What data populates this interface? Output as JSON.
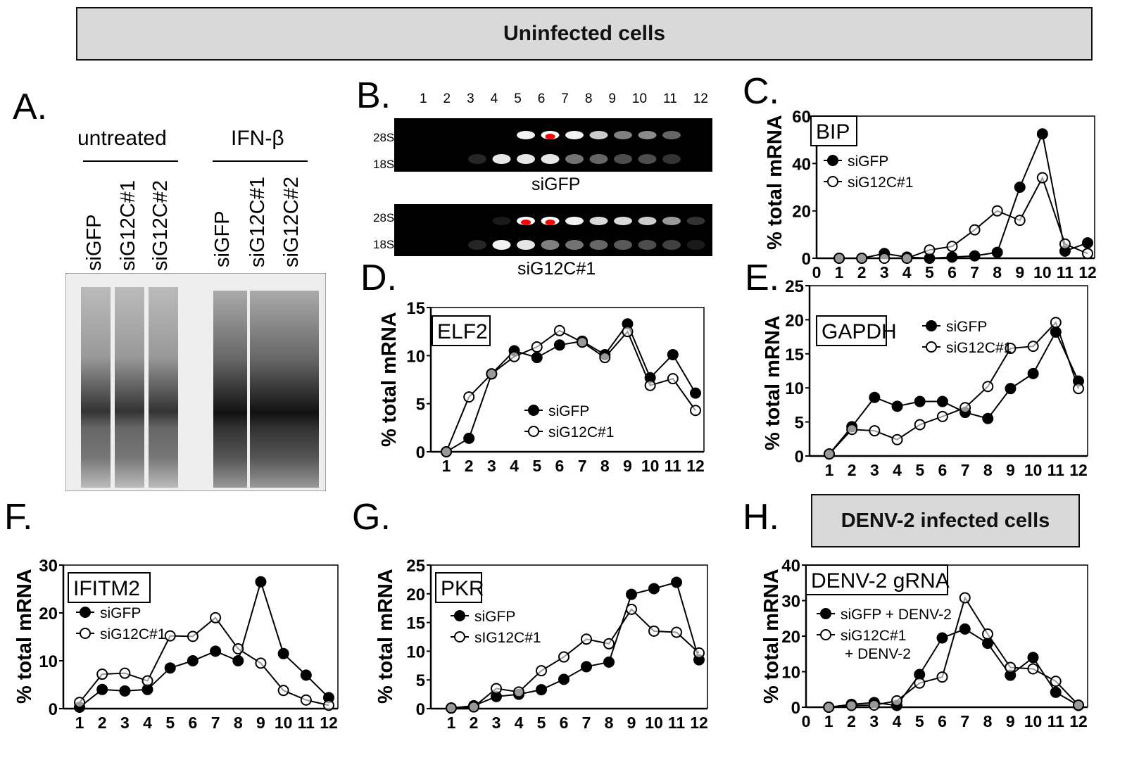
{
  "header": {
    "title": "Uninfected cells"
  },
  "panel_labels": [
    "A.",
    "B.",
    "C.",
    "D.",
    "E.",
    "F.",
    "G.",
    "H."
  ],
  "panel_a": {
    "groups": [
      "untreated",
      "IFN-β"
    ],
    "lanes": [
      "siGFP",
      "siG12C#1",
      "siG12C#2",
      "siGFP",
      "siG12C#1",
      "siG12C#2"
    ]
  },
  "panel_b": {
    "fractions": [
      "1",
      "2",
      "3",
      "4",
      "5",
      "6",
      "7",
      "8",
      "9",
      "10",
      "11",
      "12"
    ],
    "markers": [
      "28S",
      "18S"
    ],
    "gels": [
      "siGFP",
      "siG12C#1"
    ]
  },
  "infected_banner": "DENV-2 infected cells",
  "colors": {
    "banner_bg": "#d9d9d9",
    "gel_band_saturated": "#ff0000"
  },
  "chart_data": [
    {
      "type": "line",
      "title": "BIP",
      "ylabel": "% total mRNA",
      "ylim": [
        0,
        60
      ],
      "yticks": [
        0,
        20,
        40,
        60
      ],
      "xlim": [
        0,
        12
      ],
      "xticks": [
        "0",
        "1",
        "2",
        "3",
        "4",
        "5",
        "6",
        "7",
        "8",
        "9",
        "10",
        "11",
        "12"
      ],
      "x": [
        1,
        2,
        3,
        4,
        5,
        6,
        7,
        8,
        9,
        10,
        11,
        12
      ],
      "series": [
        {
          "name": "siGFP",
          "marker": "filled",
          "values": [
            0,
            0,
            2,
            0.5,
            0,
            0.5,
            1,
            2.5,
            30,
            52.5,
            3,
            6.5
          ]
        },
        {
          "name": "siG12C#1",
          "marker": "open",
          "values": [
            0,
            0,
            0,
            0,
            3.5,
            5,
            12,
            20,
            16,
            34,
            6,
            2
          ]
        }
      ]
    },
    {
      "type": "line",
      "title": "ELF2",
      "ylabel": "% total mRNA",
      "ylim": [
        0,
        15
      ],
      "yticks": [
        0,
        5,
        10,
        15
      ],
      "xlim": [
        1,
        12
      ],
      "xticks": [
        "1",
        "2",
        "3",
        "4",
        "5",
        "6",
        "7",
        "8",
        "9",
        "10",
        "11",
        "12"
      ],
      "x": [
        1,
        2,
        3,
        4,
        5,
        6,
        7,
        8,
        9,
        10,
        11,
        12
      ],
      "series": [
        {
          "name": "siGFP",
          "marker": "filled",
          "values": [
            0,
            1.4,
            8.1,
            10.5,
            9.8,
            11.1,
            11.5,
            10.1,
            13.3,
            7.7,
            10.1,
            6.1
          ]
        },
        {
          "name": "siG12C#1",
          "marker": "open",
          "values": [
            0,
            5.7,
            8.1,
            9.9,
            10.9,
            12.6,
            11.4,
            9.8,
            12.5,
            6.9,
            7.6,
            4.3
          ]
        }
      ]
    },
    {
      "type": "line",
      "title": "GAPDH",
      "ylabel": "% total mRNA",
      "ylim": [
        0,
        25
      ],
      "yticks": [
        0,
        5,
        10,
        15,
        20,
        25
      ],
      "xlim": [
        1,
        12
      ],
      "xticks": [
        "1",
        "2",
        "3",
        "4",
        "5",
        "6",
        "7",
        "8",
        "9",
        "10",
        "11",
        "12"
      ],
      "x": [
        1,
        2,
        3,
        4,
        5,
        6,
        7,
        8,
        9,
        10,
        11,
        12
      ],
      "series": [
        {
          "name": "siGFP",
          "marker": "filled",
          "values": [
            0.3,
            4.3,
            8.6,
            7.3,
            8,
            8,
            6.4,
            5.5,
            9.9,
            12.1,
            18.2,
            11
          ]
        },
        {
          "name": "siG12C#1",
          "marker": "open",
          "values": [
            0.3,
            3.9,
            3.7,
            2.4,
            4.6,
            5.8,
            7.1,
            10.2,
            15.8,
            16.1,
            19.6,
            9.9
          ]
        }
      ]
    },
    {
      "type": "line",
      "title": "IFITM2",
      "ylabel": "% total mRNA",
      "ylim": [
        0,
        30
      ],
      "yticks": [
        0,
        10,
        20,
        30
      ],
      "xlim": [
        1,
        12
      ],
      "xticks": [
        "1",
        "2",
        "3",
        "4",
        "5",
        "6",
        "7",
        "8",
        "9",
        "10",
        "11",
        "12"
      ],
      "x": [
        1,
        2,
        3,
        4,
        5,
        6,
        7,
        8,
        9,
        10,
        11,
        12
      ],
      "series": [
        {
          "name": "siGFP",
          "marker": "filled",
          "values": [
            0.3,
            4,
            3.7,
            4,
            8.5,
            10,
            12,
            10,
            26.5,
            11.5,
            7,
            2.3
          ]
        },
        {
          "name": "siG12C#1",
          "marker": "open",
          "values": [
            1.3,
            7.2,
            7.4,
            5.8,
            15.2,
            15.1,
            19,
            12.5,
            9.5,
            3.8,
            1.8,
            0.7
          ]
        }
      ]
    },
    {
      "type": "line",
      "title": "PKR",
      "ylabel": "% total mRNA",
      "ylim": [
        0,
        25
      ],
      "yticks": [
        0,
        5,
        10,
        15,
        20,
        25
      ],
      "xlim": [
        1,
        12
      ],
      "xticks": [
        "1",
        "2",
        "3",
        "4",
        "5",
        "6",
        "7",
        "8",
        "9",
        "10",
        "11",
        "12"
      ],
      "x": [
        1,
        2,
        3,
        4,
        5,
        6,
        7,
        8,
        9,
        10,
        11,
        12
      ],
      "series": [
        {
          "name": "siGFP",
          "marker": "filled",
          "values": [
            0.1,
            0.5,
            2.1,
            2.5,
            3.3,
            5.1,
            7.3,
            8.1,
            19.9,
            20.9,
            22,
            8.5
          ]
        },
        {
          "name": "sIG12C#1",
          "marker": "open",
          "values": [
            0.1,
            0.3,
            3.5,
            2.9,
            6.6,
            9,
            12.1,
            11.3,
            17.3,
            13.5,
            13.3,
            9.7
          ]
        }
      ]
    },
    {
      "type": "line",
      "title": "DENV-2 gRNA",
      "ylabel": "% total mRNA",
      "ylim": [
        0,
        40
      ],
      "yticks": [
        0,
        10,
        20,
        30,
        40
      ],
      "xlim": [
        0,
        12
      ],
      "xticks": [
        "0",
        "1",
        "2",
        "3",
        "4",
        "5",
        "6",
        "7",
        "8",
        "9",
        "10",
        "11",
        "12"
      ],
      "x": [
        1,
        2,
        3,
        4,
        5,
        6,
        7,
        8,
        9,
        10,
        11,
        12
      ],
      "series": [
        {
          "name": "siGFP + DENV-2",
          "marker": "filled",
          "values": [
            0,
            0.8,
            1.3,
            0.5,
            9.2,
            19.5,
            22,
            18,
            9,
            14,
            4.2,
            0.5
          ]
        },
        {
          "name": "siG12C#1 + DENV-2",
          "marker": "open",
          "values": [
            0,
            0.5,
            0.6,
            1.8,
            6.8,
            8.5,
            30.8,
            20.6,
            11.2,
            10.8,
            7.3,
            0.6
          ]
        }
      ]
    }
  ]
}
